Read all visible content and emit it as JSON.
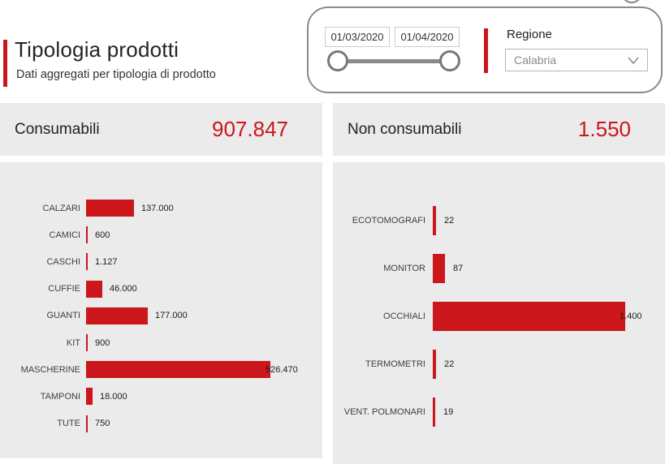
{
  "header": {
    "title": "Tipologia prodotti",
    "subtitle": "Dati aggregati per tipologia di prodotto"
  },
  "filters": {
    "date_from": "01/03/2020",
    "date_to": "01/04/2020",
    "region_label": "Regione",
    "region_value": "Calabria"
  },
  "kpis": [
    {
      "label": "Consumabili",
      "value": "907.847"
    },
    {
      "label": "Non consumabili",
      "value": "1.550"
    }
  ],
  "colors": {
    "accent_red": "#cb161b",
    "panel_background": "#ebebeb",
    "value_text": "#1b1b1b"
  },
  "chart_data": [
    {
      "type": "bar",
      "orientation": "horizontal",
      "group": "Consumabili",
      "categories": [
        "CALZARI",
        "CAMICI",
        "CASCHI",
        "CUFFIE",
        "GUANTI",
        "KIT",
        "MASCHERINE",
        "TAMPONI",
        "TUTE"
      ],
      "values": [
        137000,
        600,
        1127,
        46000,
        177000,
        900,
        526470,
        18000,
        750
      ],
      "value_labels": [
        "137.000",
        "600",
        "1.127",
        "46.000",
        "177.000",
        "900",
        "526.470",
        "18.000",
        "750"
      ],
      "xlim": [
        0,
        526470
      ],
      "grid": false,
      "legend": "none",
      "bar_color": "#cb161b"
    },
    {
      "type": "bar",
      "orientation": "horizontal",
      "group": "Non consumabili",
      "categories": [
        "ECOTOMOGRAFI",
        "MONITOR",
        "OCCHIALI",
        "TERMOMETRI",
        "VENT. POLMONARI"
      ],
      "values": [
        22,
        87,
        1400,
        22,
        19
      ],
      "value_labels": [
        "22",
        "87",
        "1.400",
        "22",
        "19"
      ],
      "xlim": [
        0,
        1400
      ],
      "grid": false,
      "legend": "none",
      "bar_color": "#cb161b"
    }
  ]
}
